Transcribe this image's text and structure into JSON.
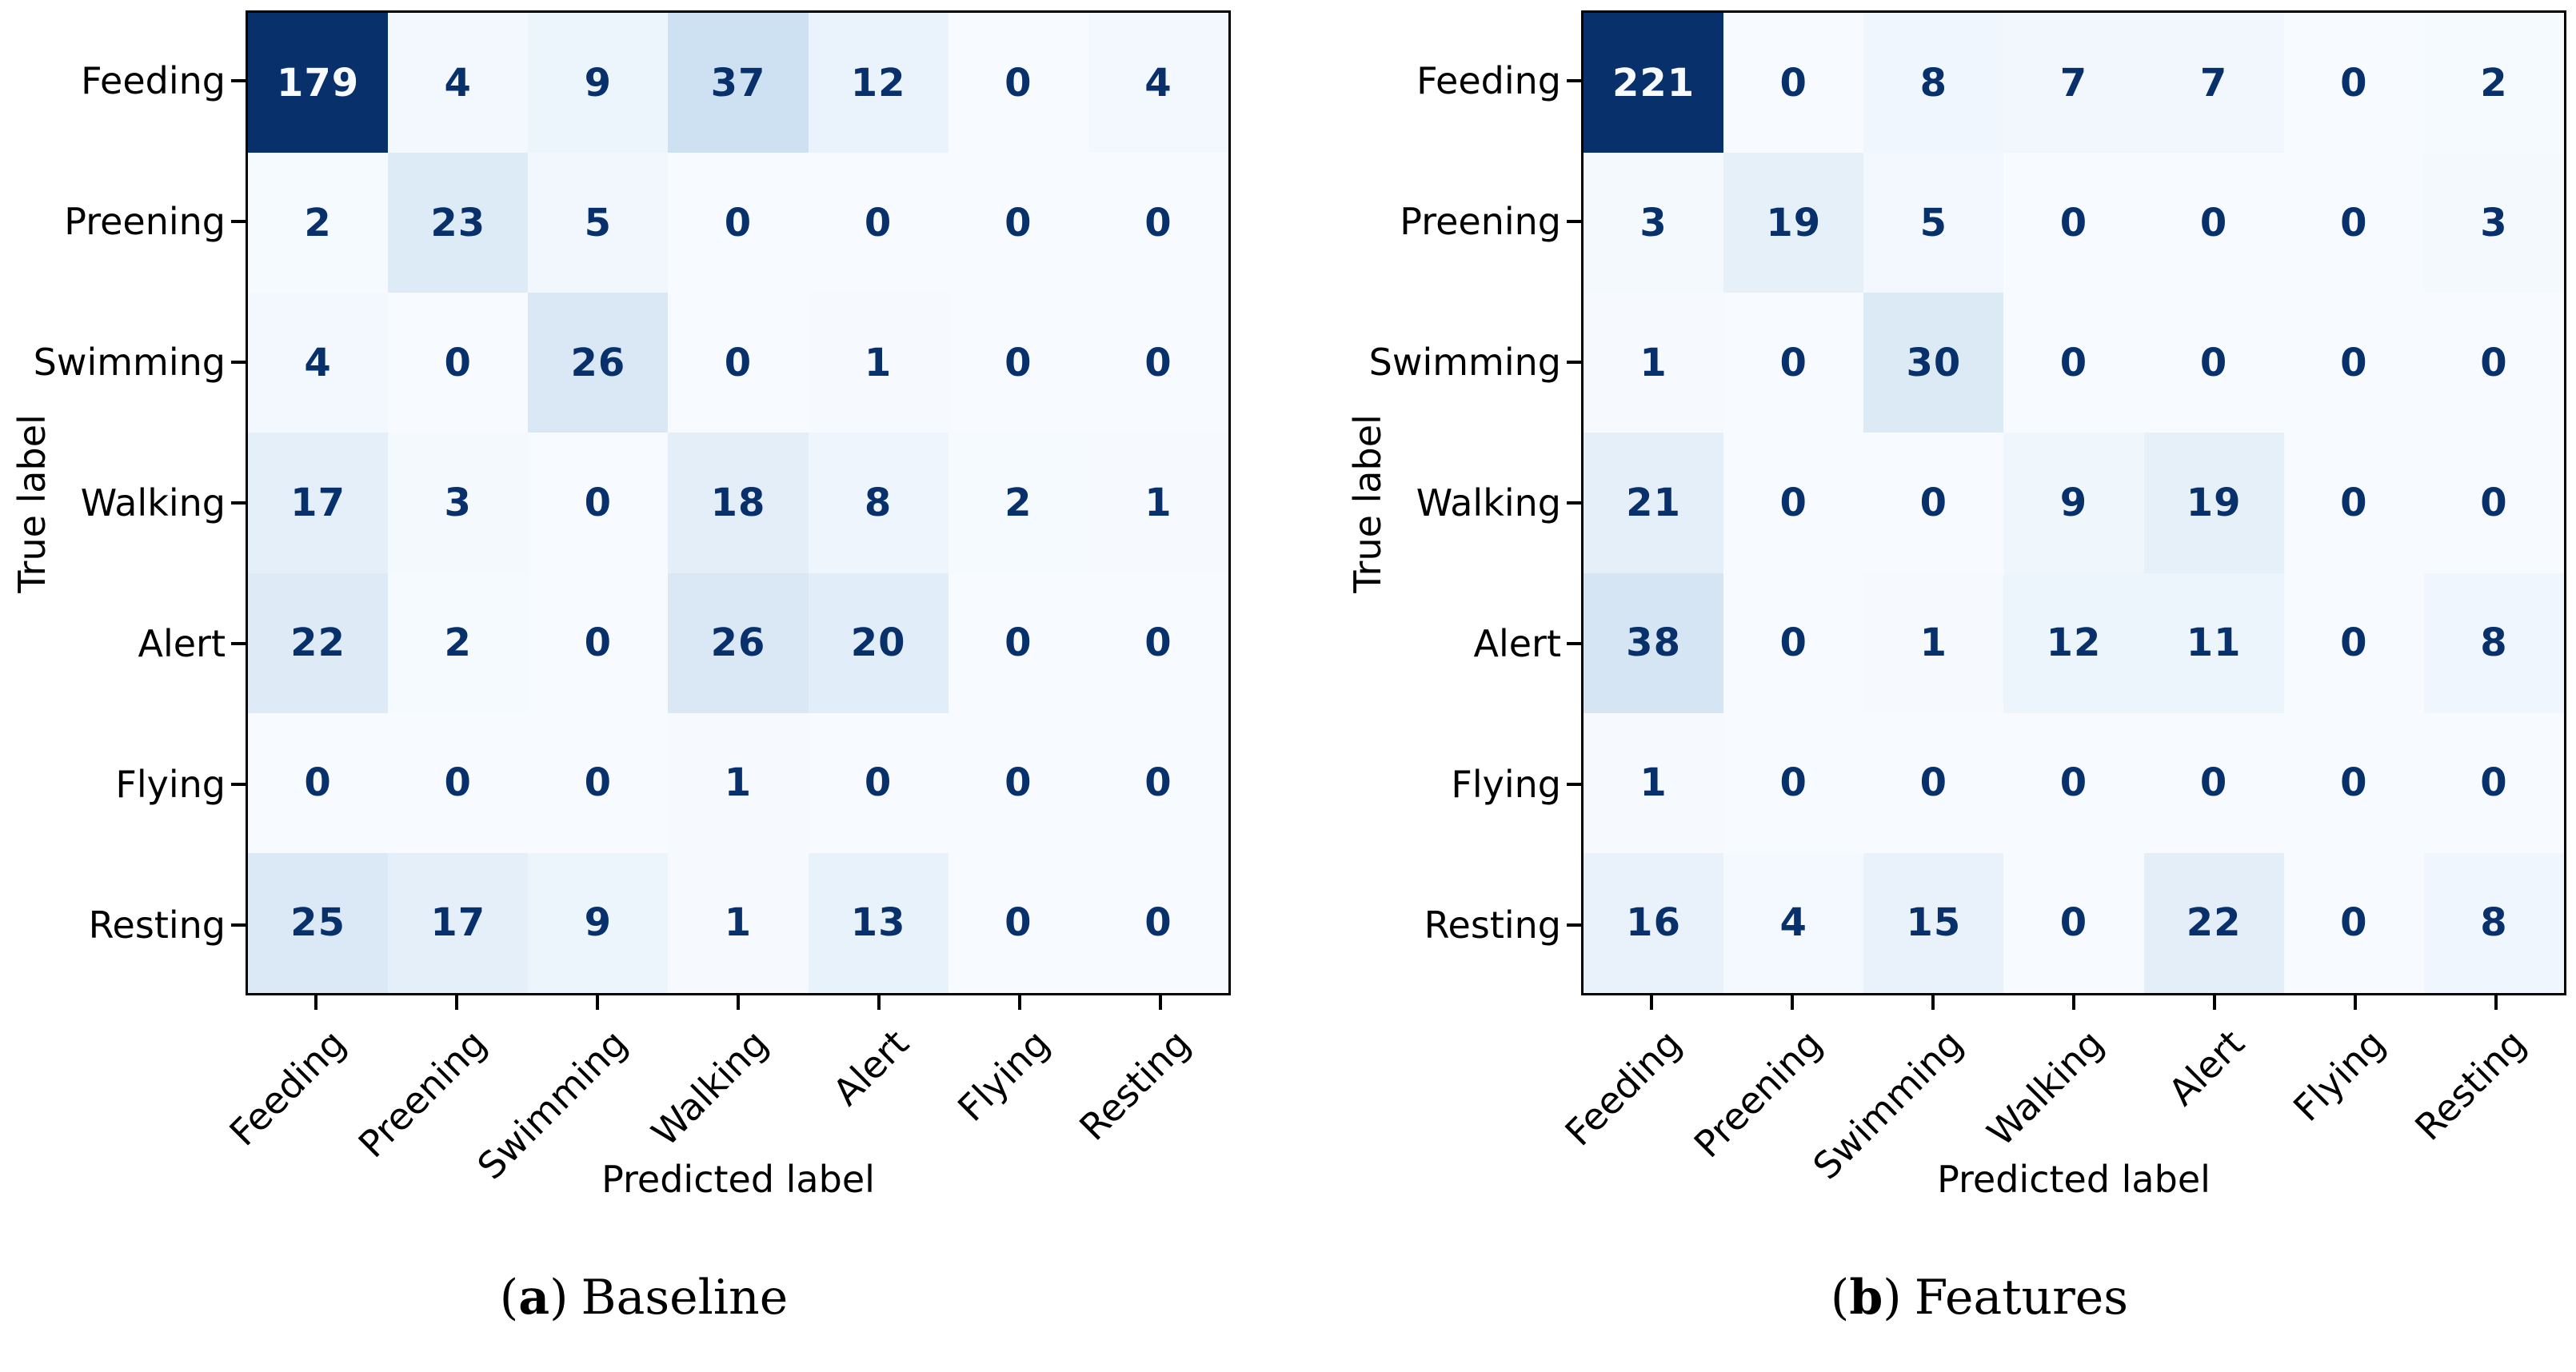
{
  "figure": {
    "background": "#ffffff",
    "subfigures": [
      {
        "caption": {
          "open": "(",
          "letter": "a",
          "close": ")",
          "label": "Baseline"
        }
      },
      {
        "caption": {
          "open": "(",
          "letter": "b",
          "close": ")",
          "label": "Features"
        }
      }
    ]
  },
  "chart_data": [
    {
      "type": "heatmap",
      "subtype": "confusion-matrix",
      "name": "baseline-confusion-matrix",
      "caption": "(a) Baseline",
      "xlabel": "Predicted label",
      "ylabel": "True label",
      "x_categories": [
        "Feeding",
        "Preening",
        "Swimming",
        "Walking",
        "Alert",
        "Flying",
        "Resting"
      ],
      "y_categories": [
        "Feeding",
        "Preening",
        "Swimming",
        "Walking",
        "Alert",
        "Flying",
        "Resting"
      ],
      "matrix": [
        [
          179,
          4,
          9,
          37,
          12,
          0,
          4
        ],
        [
          2,
          23,
          5,
          0,
          0,
          0,
          0
        ],
        [
          4,
          0,
          26,
          0,
          1,
          0,
          0
        ],
        [
          17,
          3,
          0,
          18,
          8,
          2,
          1
        ],
        [
          22,
          2,
          0,
          26,
          20,
          0,
          0
        ],
        [
          0,
          0,
          0,
          1,
          0,
          0,
          0
        ],
        [
          25,
          17,
          9,
          1,
          13,
          0,
          0
        ]
      ],
      "vmin": 0,
      "vmax": 179,
      "colormap": "Blues",
      "grid": false,
      "legend": "none"
    },
    {
      "type": "heatmap",
      "subtype": "confusion-matrix",
      "name": "features-confusion-matrix",
      "caption": "(b) Features",
      "xlabel": "Predicted label",
      "ylabel": "True label",
      "x_categories": [
        "Feeding",
        "Preening",
        "Swimming",
        "Walking",
        "Alert",
        "Flying",
        "Resting"
      ],
      "y_categories": [
        "Feeding",
        "Preening",
        "Swimming",
        "Walking",
        "Alert",
        "Flying",
        "Resting"
      ],
      "matrix": [
        [
          221,
          0,
          8,
          7,
          7,
          0,
          2
        ],
        [
          3,
          19,
          5,
          0,
          0,
          0,
          3
        ],
        [
          1,
          0,
          30,
          0,
          0,
          0,
          0
        ],
        [
          21,
          0,
          0,
          9,
          19,
          0,
          0
        ],
        [
          38,
          0,
          1,
          12,
          11,
          0,
          8
        ],
        [
          1,
          0,
          0,
          0,
          0,
          0,
          0
        ],
        [
          16,
          4,
          15,
          0,
          22,
          0,
          8
        ]
      ],
      "vmin": 0,
      "vmax": 221,
      "colormap": "Blues",
      "grid": false,
      "legend": "none"
    }
  ],
  "style": {
    "colormap_stops": [
      {
        "t": 0.0,
        "color": "#f7fbff"
      },
      {
        "t": 0.125,
        "color": "#deebf7"
      },
      {
        "t": 0.25,
        "color": "#c6dbef"
      },
      {
        "t": 0.375,
        "color": "#9ecae1"
      },
      {
        "t": 0.5,
        "color": "#6baed6"
      },
      {
        "t": 0.625,
        "color": "#4292c6"
      },
      {
        "t": 0.75,
        "color": "#2171b5"
      },
      {
        "t": 0.875,
        "color": "#08519c"
      },
      {
        "t": 1.0,
        "color": "#08306b"
      }
    ],
    "cell_text_dark": "#08306b",
    "cell_text_light": "#f7fbff",
    "axis_color": "#000000",
    "label_color": "#000000"
  }
}
